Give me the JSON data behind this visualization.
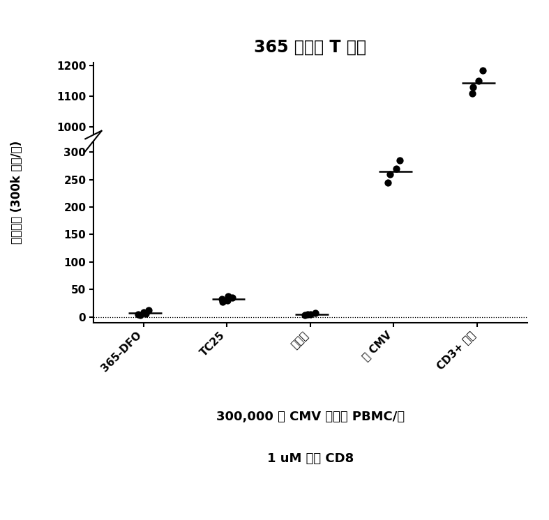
{
  "title": "365 不激活 T 细胞",
  "ylabel": "班点数量 (300k 细胞/孔)",
  "subtitle1": "300,000 个 CMV 反应性 PBMC/孔",
  "subtitle2": "1 uM 的抗 CD8",
  "categories": [
    "365-DFO",
    "TC25",
    "培养基",
    "仅 CMV",
    "CD3+ 对照"
  ],
  "points": {
    "365-DFO": [
      5,
      8,
      12,
      3,
      6
    ],
    "TC25": [
      32,
      38,
      35,
      28,
      30
    ],
    "培养基": [
      3,
      5,
      7,
      4
    ],
    "仅 CMV": [
      245,
      270,
      285,
      260
    ],
    "CD3+ 对照": [
      1130,
      1150,
      1185,
      1110
    ]
  },
  "jitter": {
    "365-DFO": [
      -0.06,
      0.0,
      0.06,
      -0.04,
      0.03
    ],
    "TC25": [
      -0.06,
      0.02,
      0.07,
      -0.05,
      0.01
    ],
    "培养基": [
      -0.06,
      0.0,
      0.06,
      -0.03
    ],
    "仅 CMV": [
      -0.07,
      0.03,
      0.07,
      -0.04
    ],
    "CD3+ 对照": [
      -0.05,
      0.02,
      0.07,
      -0.06
    ]
  },
  "background_color": "#ffffff",
  "dot_color": "#000000",
  "line_color": "#000000",
  "title_fontsize": 17,
  "label_fontsize": 12,
  "tick_fontsize": 11,
  "subtitle_fontsize": 13
}
